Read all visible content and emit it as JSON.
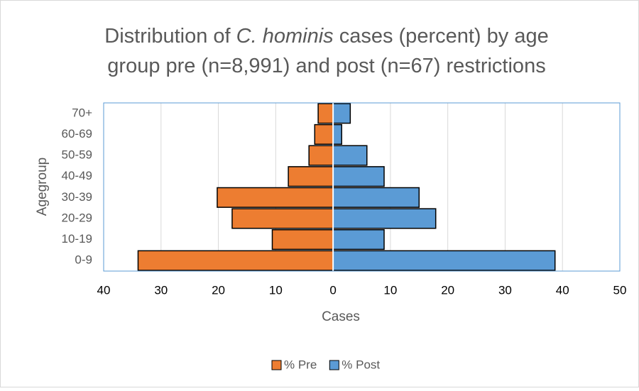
{
  "chart_data": {
    "type": "pyramid",
    "title": [
      {
        "text": "Distribution of "
      },
      {
        "text": "C. hominis",
        "italic": true
      },
      {
        "text": " cases (percent) by age"
      },
      {
        "text": "group pre (n=8,991) and post (n=67) restrictions"
      }
    ],
    "x_label": "Cases",
    "y_label": "Agegroup",
    "categories": [
      "0-9",
      "10-19",
      "20-29",
      "30-39",
      "40-49",
      "50-59",
      "60-69",
      "70+"
    ],
    "series": [
      {
        "name": "% Pre",
        "color": "#ed7d31",
        "values": [
          -34.0,
          -10.6,
          -17.6,
          -20.2,
          -7.8,
          -4.2,
          -3.2,
          -2.6
        ]
      },
      {
        "name": "% Post",
        "color": "#5b9bd5",
        "values": [
          38.7,
          8.9,
          17.9,
          15.0,
          8.9,
          5.9,
          1.5,
          3.0
        ]
      }
    ],
    "xlim": [
      -40,
      50
    ],
    "xticks": [
      {
        "value": -40,
        "label": "40"
      },
      {
        "value": -30,
        "label": "30"
      },
      {
        "value": -20,
        "label": "20"
      },
      {
        "value": -10,
        "label": "10"
      },
      0,
      10,
      20,
      30,
      40,
      50
    ],
    "grid": true,
    "legend": "bottom"
  }
}
